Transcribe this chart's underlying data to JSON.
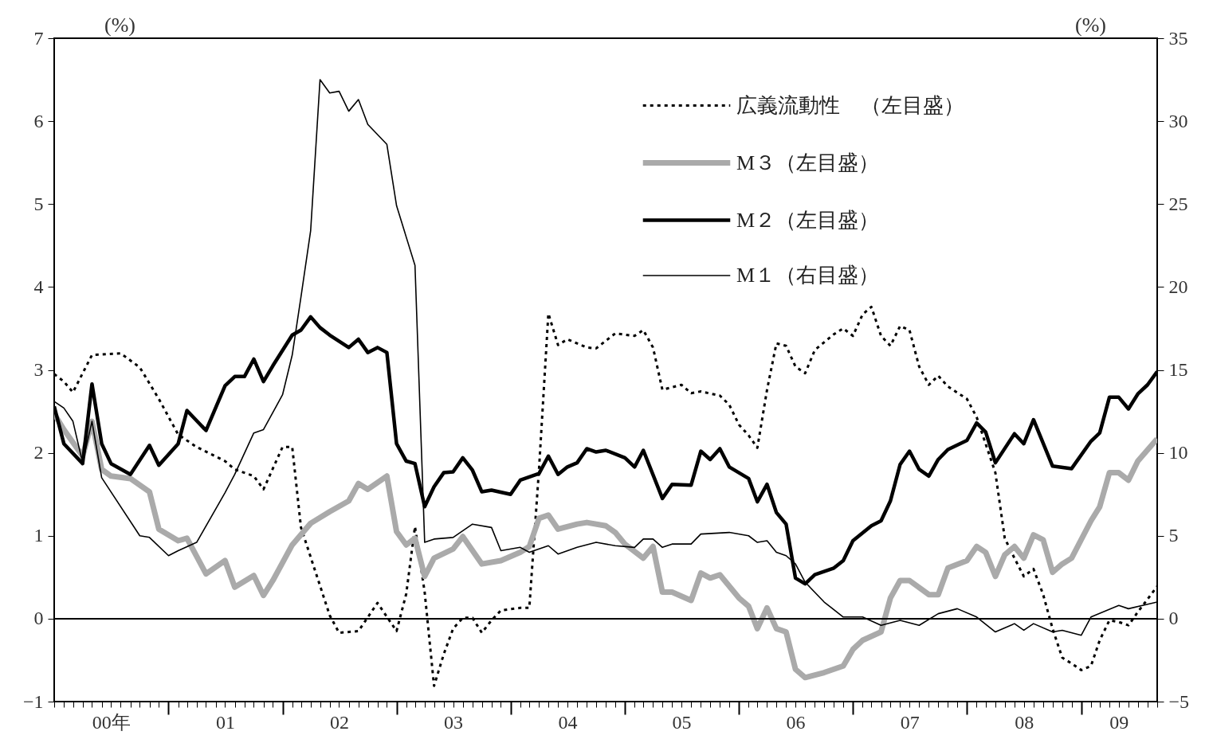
{
  "chart_data": {
    "type": "line",
    "ylabel": "(%)",
    "y2label": "(%)",
    "xlim": [
      "2000-01",
      "2009-09"
    ],
    "xticks": [
      {
        "value": "2000-07",
        "label": "00年"
      },
      {
        "value": "2001-01",
        "label": null
      },
      {
        "value": "2001-07",
        "label": "01"
      },
      {
        "value": "2002-01",
        "label": null
      },
      {
        "value": "2002-07",
        "label": "02"
      },
      {
        "value": "2003-01",
        "label": null
      },
      {
        "value": "2003-07",
        "label": "03"
      },
      {
        "value": "2004-01",
        "label": null
      },
      {
        "value": "2004-07",
        "label": "04"
      },
      {
        "value": "2005-01",
        "label": null
      },
      {
        "value": "2005-07",
        "label": "05"
      },
      {
        "value": "2006-01",
        "label": null
      },
      {
        "value": "2006-07",
        "label": "06"
      },
      {
        "value": "2007-01",
        "label": null
      },
      {
        "value": "2007-07",
        "label": "07"
      },
      {
        "value": "2008-01",
        "label": null
      },
      {
        "value": "2008-07",
        "label": "08"
      },
      {
        "value": "2009-01",
        "label": null
      },
      {
        "value": "2009-05",
        "label": "09"
      }
    ],
    "ylim": [
      -1,
      7
    ],
    "yticks": [
      -1,
      0,
      1,
      2,
      3,
      4,
      5,
      6,
      7
    ],
    "y2lim": [
      -5,
      35
    ],
    "y2ticks": [
      -5,
      0,
      5,
      10,
      15,
      20,
      25,
      30,
      35
    ],
    "grid": false,
    "legend": "top right",
    "ref_lines": [
      {
        "axis": "y",
        "value": 0,
        "color": "#000000"
      }
    ],
    "series": [
      {
        "name": "広義流動性　（左目盛）",
        "color": "#000000",
        "line_style": "dotted",
        "x": [
          "2000-01",
          "2000-02",
          "2000-03",
          "2000-05",
          "2000-08",
          "2000-10",
          "2000-12",
          "2001-02",
          "2001-04",
          "2001-07",
          "2001-08",
          "2001-10",
          "2001-11",
          "2002-01",
          "2002-02",
          "2002-03",
          "2002-06",
          "2002-07",
          "2002-09",
          "2002-11",
          "2003-01",
          "2003-02",
          "2003-03",
          "2003-04",
          "2003-05",
          "2003-06",
          "2003-07",
          "2003-08",
          "2003-09",
          "2003-10",
          "2003-11",
          "2003-12",
          "2004-02",
          "2004-03",
          "2004-04",
          "2004-05",
          "2004-06",
          "2004-07",
          "2004-09",
          "2004-10",
          "2004-12",
          "2005-02",
          "2005-03",
          "2005-04",
          "2005-05",
          "2005-07",
          "2005-08",
          "2005-09",
          "2005-11",
          "2005-12",
          "2006-01",
          "2006-02",
          "2006-03",
          "2006-04",
          "2006-05",
          "2006-06",
          "2006-07",
          "2006-08",
          "2006-09",
          "2006-11",
          "2006-12",
          "2007-01",
          "2007-02",
          "2007-03",
          "2007-04",
          "2007-05",
          "2007-06",
          "2007-07",
          "2007-08",
          "2007-09",
          "2007-10",
          "2007-11",
          "2008-01",
          "2008-02",
          "2008-04",
          "2008-05",
          "2008-06",
          "2008-07",
          "2008-08",
          "2008-09",
          "2008-10",
          "2008-11",
          "2008-12",
          "2009-01",
          "2009-02",
          "2009-03",
          "2009-04",
          "2009-05",
          "2009-06",
          "2009-07",
          "2009-09"
        ],
        "values": [
          2.95,
          2.86,
          2.73,
          3.18,
          3.2,
          3.03,
          2.65,
          2.22,
          2.07,
          1.9,
          1.8,
          1.72,
          1.56,
          2.07,
          2.07,
          1.1,
          0.04,
          -0.17,
          -0.15,
          0.19,
          -0.15,
          0.3,
          1.11,
          0.32,
          -0.81,
          -0.43,
          -0.12,
          0.01,
          0.01,
          -0.17,
          -0.02,
          0.1,
          0.13,
          0.13,
          1.8,
          3.68,
          3.3,
          3.37,
          3.27,
          3.26,
          3.44,
          3.41,
          3.48,
          3.27,
          2.76,
          2.82,
          2.72,
          2.74,
          2.69,
          2.58,
          2.34,
          2.21,
          2.06,
          2.76,
          3.32,
          3.29,
          3.04,
          2.96,
          3.24,
          3.43,
          3.5,
          3.41,
          3.67,
          3.76,
          3.41,
          3.29,
          3.53,
          3.48,
          3.04,
          2.82,
          2.93,
          2.8,
          2.65,
          2.43,
          1.76,
          0.97,
          0.73,
          0.51,
          0.6,
          0.29,
          -0.12,
          -0.47,
          -0.54,
          -0.62,
          -0.57,
          -0.26,
          -0.02,
          -0.04,
          -0.08,
          0.08,
          0.39
        ]
      },
      {
        "name": "M３（左目盛）",
        "color": "#aaaaaa",
        "line_style": "solid",
        "x": [
          "2000-01",
          "2000-02",
          "2000-04",
          "2000-05",
          "2000-06",
          "2000-07",
          "2000-09",
          "2000-11",
          "2000-12",
          "2001-02",
          "2001-03",
          "2001-05",
          "2001-07",
          "2001-08",
          "2001-10",
          "2001-11",
          "2001-12",
          "2002-02",
          "2002-04",
          "2002-06",
          "2002-08",
          "2002-09",
          "2002-10",
          "2002-12",
          "2003-01",
          "2003-02",
          "2003-03",
          "2003-04",
          "2003-05",
          "2003-07",
          "2003-08",
          "2003-10",
          "2003-12",
          "2004-02",
          "2004-03",
          "2004-04",
          "2004-05",
          "2004-06",
          "2004-08",
          "2004-09",
          "2004-11",
          "2004-12",
          "2005-01",
          "2005-03",
          "2005-04",
          "2005-05",
          "2005-06",
          "2005-08",
          "2005-09",
          "2005-10",
          "2005-11",
          "2006-01",
          "2006-02",
          "2006-03",
          "2006-04",
          "2006-05",
          "2006-06",
          "2006-07",
          "2006-08",
          "2006-10",
          "2006-12",
          "2007-01",
          "2007-02",
          "2007-04",
          "2007-05",
          "2007-06",
          "2007-07",
          "2007-09",
          "2007-10",
          "2007-11",
          "2008-01",
          "2008-02",
          "2008-03",
          "2008-04",
          "2008-05",
          "2008-06",
          "2008-07",
          "2008-08",
          "2008-09",
          "2008-10",
          "2008-11",
          "2008-12",
          "2009-02",
          "2009-03",
          "2009-04",
          "2009-05",
          "2009-06",
          "2009-07",
          "2009-09"
        ],
        "values": [
          2.47,
          2.28,
          1.96,
          2.38,
          1.8,
          1.72,
          1.69,
          1.53,
          1.08,
          0.94,
          0.97,
          0.54,
          0.7,
          0.38,
          0.52,
          0.28,
          0.46,
          0.89,
          1.15,
          1.29,
          1.42,
          1.63,
          1.56,
          1.72,
          1.05,
          0.89,
          0.97,
          0.51,
          0.73,
          0.84,
          0.99,
          0.66,
          0.7,
          0.8,
          0.87,
          1.21,
          1.25,
          1.08,
          1.14,
          1.16,
          1.12,
          1.04,
          0.9,
          0.73,
          0.87,
          0.32,
          0.32,
          0.22,
          0.55,
          0.49,
          0.53,
          0.25,
          0.15,
          -0.12,
          0.13,
          -0.12,
          -0.16,
          -0.61,
          -0.71,
          -0.65,
          -0.57,
          -0.37,
          -0.26,
          -0.16,
          0.25,
          0.46,
          0.46,
          0.29,
          0.29,
          0.61,
          0.7,
          0.87,
          0.8,
          0.51,
          0.77,
          0.87,
          0.73,
          1.01,
          0.95,
          0.56,
          0.66,
          0.73,
          1.18,
          1.35,
          1.76,
          1.76,
          1.67,
          1.9,
          2.17
        ]
      },
      {
        "name": "M２（左目盛）",
        "color": "#000000",
        "line_style": "solid",
        "x": [
          "2000-01",
          "2000-02",
          "2000-04",
          "2000-05",
          "2000-06",
          "2000-07",
          "2000-09",
          "2000-11",
          "2000-12",
          "2001-02",
          "2001-03",
          "2001-05",
          "2001-07",
          "2001-08",
          "2001-09",
          "2001-10",
          "2001-11",
          "2001-12",
          "2002-02",
          "2002-03",
          "2002-04",
          "2002-05",
          "2002-06",
          "2002-08",
          "2002-09",
          "2002-10",
          "2002-11",
          "2002-12",
          "2003-01",
          "2003-02",
          "2003-03",
          "2003-04",
          "2003-05",
          "2003-06",
          "2003-07",
          "2003-08",
          "2003-09",
          "2003-10",
          "2003-11",
          "2004-01",
          "2004-02",
          "2004-04",
          "2004-05",
          "2004-06",
          "2004-07",
          "2004-08",
          "2004-09",
          "2004-10",
          "2004-11",
          "2005-01",
          "2005-02",
          "2005-03",
          "2005-05",
          "2005-06",
          "2005-08",
          "2005-09",
          "2005-10",
          "2005-11",
          "2005-12",
          "2006-02",
          "2006-03",
          "2006-04",
          "2006-05",
          "2006-06",
          "2006-07",
          "2006-08",
          "2006-09",
          "2006-11",
          "2006-12",
          "2007-01",
          "2007-03",
          "2007-04",
          "2007-05",
          "2007-06",
          "2007-07",
          "2007-08",
          "2007-09",
          "2007-10",
          "2007-11",
          "2008-01",
          "2008-02",
          "2008-03",
          "2008-04",
          "2008-06",
          "2008-07",
          "2008-08",
          "2008-10",
          "2008-12",
          "2009-02",
          "2009-03",
          "2009-04",
          "2009-05",
          "2009-06",
          "2009-07",
          "2009-08",
          "2009-09"
        ],
        "values": [
          2.56,
          2.11,
          1.87,
          2.83,
          2.11,
          1.87,
          1.74,
          2.09,
          1.85,
          2.11,
          2.51,
          2.27,
          2.81,
          2.92,
          2.92,
          3.13,
          2.86,
          3.05,
          3.42,
          3.48,
          3.64,
          3.51,
          3.42,
          3.27,
          3.37,
          3.21,
          3.27,
          3.21,
          2.11,
          1.9,
          1.87,
          1.35,
          1.59,
          1.76,
          1.77,
          1.94,
          1.79,
          1.53,
          1.55,
          1.5,
          1.67,
          1.75,
          1.96,
          1.74,
          1.83,
          1.88,
          2.05,
          2.01,
          2.03,
          1.94,
          1.83,
          2.03,
          1.45,
          1.62,
          1.61,
          2.02,
          1.92,
          2.05,
          1.83,
          1.69,
          1.41,
          1.62,
          1.28,
          1.14,
          0.49,
          0.42,
          0.53,
          0.61,
          0.7,
          0.94,
          1.12,
          1.18,
          1.42,
          1.86,
          2.02,
          1.8,
          1.72,
          1.92,
          2.04,
          2.15,
          2.36,
          2.25,
          1.88,
          2.23,
          2.11,
          2.4,
          1.84,
          1.81,
          2.14,
          2.24,
          2.67,
          2.67,
          2.53,
          2.71,
          2.82,
          2.98
        ]
      },
      {
        "name": "M１（右目盛）",
        "color": "#000000",
        "line_style": "solid",
        "axis": "y2",
        "x": [
          "2000-01",
          "2000-02",
          "2000-03",
          "2000-04",
          "2000-05",
          "2000-06",
          "2000-10",
          "2000-11",
          "2001-01",
          "2001-02",
          "2001-04",
          "2001-07",
          "2001-08",
          "2001-10",
          "2001-11",
          "2002-01",
          "2002-02",
          "2002-03",
          "2002-04",
          "2002-05",
          "2002-06",
          "2002-07",
          "2002-08",
          "2002-09",
          "2002-10",
          "2002-12",
          "2003-01",
          "2003-03",
          "2003-04",
          "2003-05",
          "2003-07",
          "2003-09",
          "2003-11",
          "2003-12",
          "2004-02",
          "2004-03",
          "2004-05",
          "2004-06",
          "2004-08",
          "2004-10",
          "2004-12",
          "2005-02",
          "2005-03",
          "2005-04",
          "2005-05",
          "2005-06",
          "2005-08",
          "2005-09",
          "2005-12",
          "2006-02",
          "2006-03",
          "2006-04",
          "2006-05",
          "2006-06",
          "2006-07",
          "2006-08",
          "2006-10",
          "2006-12",
          "2007-02",
          "2007-04",
          "2007-06",
          "2007-08",
          "2007-10",
          "2007-12",
          "2008-02",
          "2008-04",
          "2008-06",
          "2008-07",
          "2008-08",
          "2008-10",
          "2008-11",
          "2009-01",
          "2009-02",
          "2009-05",
          "2009-06",
          "2009-09"
        ],
        "values": [
          13.1,
          12.7,
          11.9,
          9.4,
          11.9,
          8.5,
          5.0,
          4.9,
          3.8,
          4.1,
          4.6,
          7.6,
          8.7,
          11.2,
          11.4,
          13.5,
          15.9,
          19.4,
          23.4,
          32.5,
          31.7,
          31.8,
          30.6,
          31.3,
          29.8,
          28.6,
          24.9,
          21.3,
          4.6,
          4.8,
          4.9,
          5.7,
          5.5,
          4.1,
          4.3,
          4.0,
          4.4,
          3.9,
          4.3,
          4.6,
          4.4,
          4.3,
          4.8,
          4.8,
          4.3,
          4.5,
          4.5,
          5.1,
          5.2,
          5.0,
          4.6,
          4.7,
          4.0,
          3.8,
          3.3,
          2.2,
          1.0,
          0.1,
          0.1,
          -0.4,
          -0.1,
          -0.4,
          0.3,
          0.6,
          0.1,
          -0.8,
          -0.3,
          -0.7,
          -0.3,
          -0.8,
          -0.7,
          -1.0,
          0.1,
          0.8,
          0.6,
          1.0
        ]
      }
    ]
  }
}
